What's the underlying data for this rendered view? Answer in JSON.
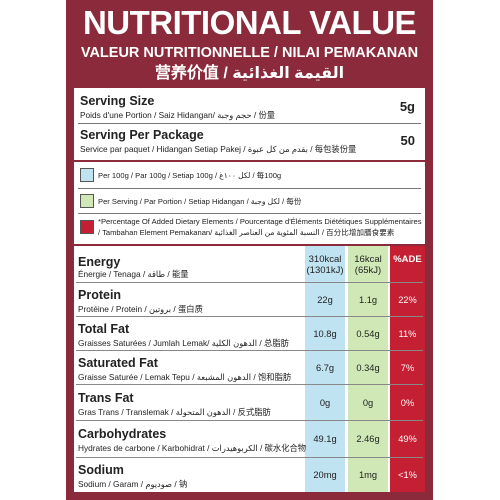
{
  "header": {
    "title": "NUTRITIONAL VALUE",
    "subtitle": "VALEUR NUTRITIONNELLE / NILAI PEMAKANAN",
    "subtitle2": "营养价值 / القيمة الغذائية"
  },
  "serving": {
    "size_label": "Serving Size",
    "size_sub": "Poids d'une Portion / Saiz Hidangan/ حجم وجبة / 份量",
    "size_value": "5g",
    "package_label": "Serving Per Package",
    "package_sub": "Service par paquet / Hidangan Setiap Pakej / بقدم من كل عبوة / 每包装份量",
    "package_value": "50"
  },
  "legend": {
    "per100": "Per 100g / Par 100g / Setiap 100g / لكل ١٠٠غ / 每100g",
    "per_serving": "Per Serving / Par Portion / Setiap Hidangan / لكل وجبة / 每份",
    "ade_line1": "*Percentage Of Added Dietary Elements / Pourcentage d'Éléments Diététiques Supplémentaires",
    "ade_line2": "/ Tambahan Element Pemakanan/ النسبة المئوية من العناصر الغذائية / 百分比增加膳食要素"
  },
  "colors": {
    "panel": "#8a2a3a",
    "per100": "#bfe3f1",
    "per_serving": "#cfe8b5",
    "ade": "#c41f33"
  },
  "nutrients": [
    {
      "name": "Energy",
      "sub": "Énergie / Tenaga / طاقة / 能量",
      "per100_line1": "310kcal",
      "per100_line2": "(1301kJ)",
      "serving_line1": "16kcal",
      "serving_line2": "(65kJ)",
      "ade": "%ADE"
    },
    {
      "name": "Protein",
      "sub": "Protéine / Protein / بروتين / 蛋白质",
      "per100": "22g",
      "serving": "1.1g",
      "ade": "22%"
    },
    {
      "name": "Total Fat",
      "sub": "Graisses Saturées / Jumlah Lemak/ الدهون الكلية / 总脂肪",
      "per100": "10.8g",
      "serving": "0.54g",
      "ade": "11%"
    },
    {
      "name": "Saturated Fat",
      "sub": "Graisse Saturée / Lemak Tepu / الدهون المشبعة / 饱和脂肪",
      "per100": "6.7g",
      "serving": "0.34g",
      "ade": "7%"
    },
    {
      "name": "Trans Fat",
      "sub": "Gras Trans / Translemak / الدهون المتحولة / 反式脂肪",
      "per100": "0g",
      "serving": "0g",
      "ade": "0%"
    },
    {
      "name": "Carbohydrates",
      "sub": "Hydrates de carbone / Karbohidrat / الكربوهيدرات / 碳水化合物",
      "per100": "49.1g",
      "serving": "2.46g",
      "ade": "49%"
    },
    {
      "name": "Sodium",
      "sub": "Sodium / Garam / صوديوم / 钠",
      "per100": "20mg",
      "serving": "1mg",
      "ade": "<1%"
    }
  ]
}
